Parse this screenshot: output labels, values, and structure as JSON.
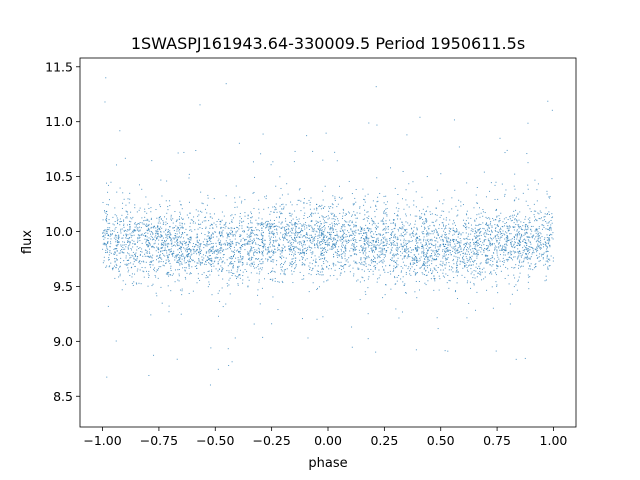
{
  "chart_data": {
    "type": "scatter",
    "title": "1SWASPJ161943.64-330009.5 Period 1950611.5s",
    "xlabel": "phase",
    "ylabel": "flux",
    "xlim": [
      -1.1,
      1.1
    ],
    "ylim": [
      8.22,
      11.58
    ],
    "xticks": [
      -1.0,
      -0.75,
      -0.5,
      -0.25,
      0.0,
      0.25,
      0.5,
      0.75,
      1.0
    ],
    "xtick_labels": [
      "−1.00",
      "−0.75",
      "−0.50",
      "−0.25",
      "0.00",
      "0.25",
      "0.50",
      "0.75",
      "1.00"
    ],
    "yticks": [
      8.5,
      9.0,
      9.5,
      10.0,
      10.5,
      11.0,
      11.5
    ],
    "ytick_labels": [
      "8.5",
      "9.0",
      "9.5",
      "10.0",
      "10.5",
      "11.0",
      "11.5"
    ],
    "grid": false,
    "marker_color": "#1f77b4",
    "series": [
      {
        "phase_range": [
          -1.0,
          1.0
        ],
        "flux_median": 9.9,
        "flux_typical_range": [
          9.5,
          10.3
        ],
        "flux_extremes": [
          8.35,
          11.42
        ]
      }
    ]
  }
}
